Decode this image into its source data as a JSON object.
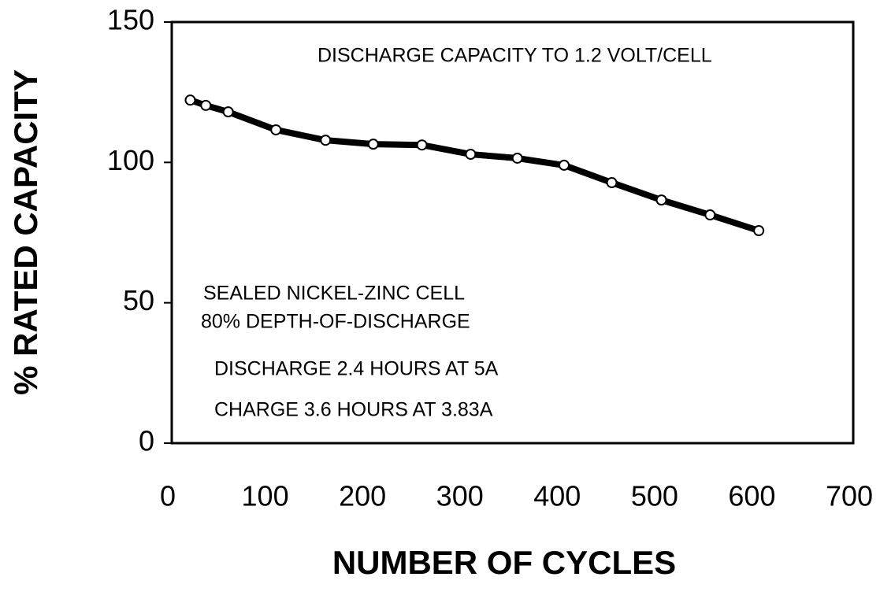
{
  "chart_data": {
    "type": "line",
    "x_label": "NUMBER OF CYCLES",
    "y_label": "% RATED CAPACITY",
    "annotations": [
      "DISCHARGE CAPACITY TO 1.2 VOLT/CELL",
      "SEALED NICKEL-ZINC CELL",
      "80% DEPTH-OF-DISCHARGE",
      "DISCHARGE 2.4 HOURS AT 5A",
      "CHARGE 3.6 HOURS AT 3.83A"
    ],
    "x": [
      19,
      35,
      58,
      107,
      158,
      207,
      257,
      307,
      355,
      403,
      452,
      503,
      553,
      603
    ],
    "series": [
      {
        "name": "capacity",
        "color": "#000000",
        "values": [
          122.2,
          120.3,
          118,
          111.6,
          107.9,
          106.5,
          106.2,
          102.9,
          101.5,
          99,
          92.8,
          86.6,
          81.3,
          75.7
        ]
      }
    ],
    "xlim": [
      0,
      700
    ],
    "xticks": [
      0,
      100,
      200,
      300,
      400,
      500,
      600,
      700
    ],
    "ylim": [
      0,
      150
    ],
    "yticks": [
      0,
      50,
      100,
      150
    ]
  }
}
